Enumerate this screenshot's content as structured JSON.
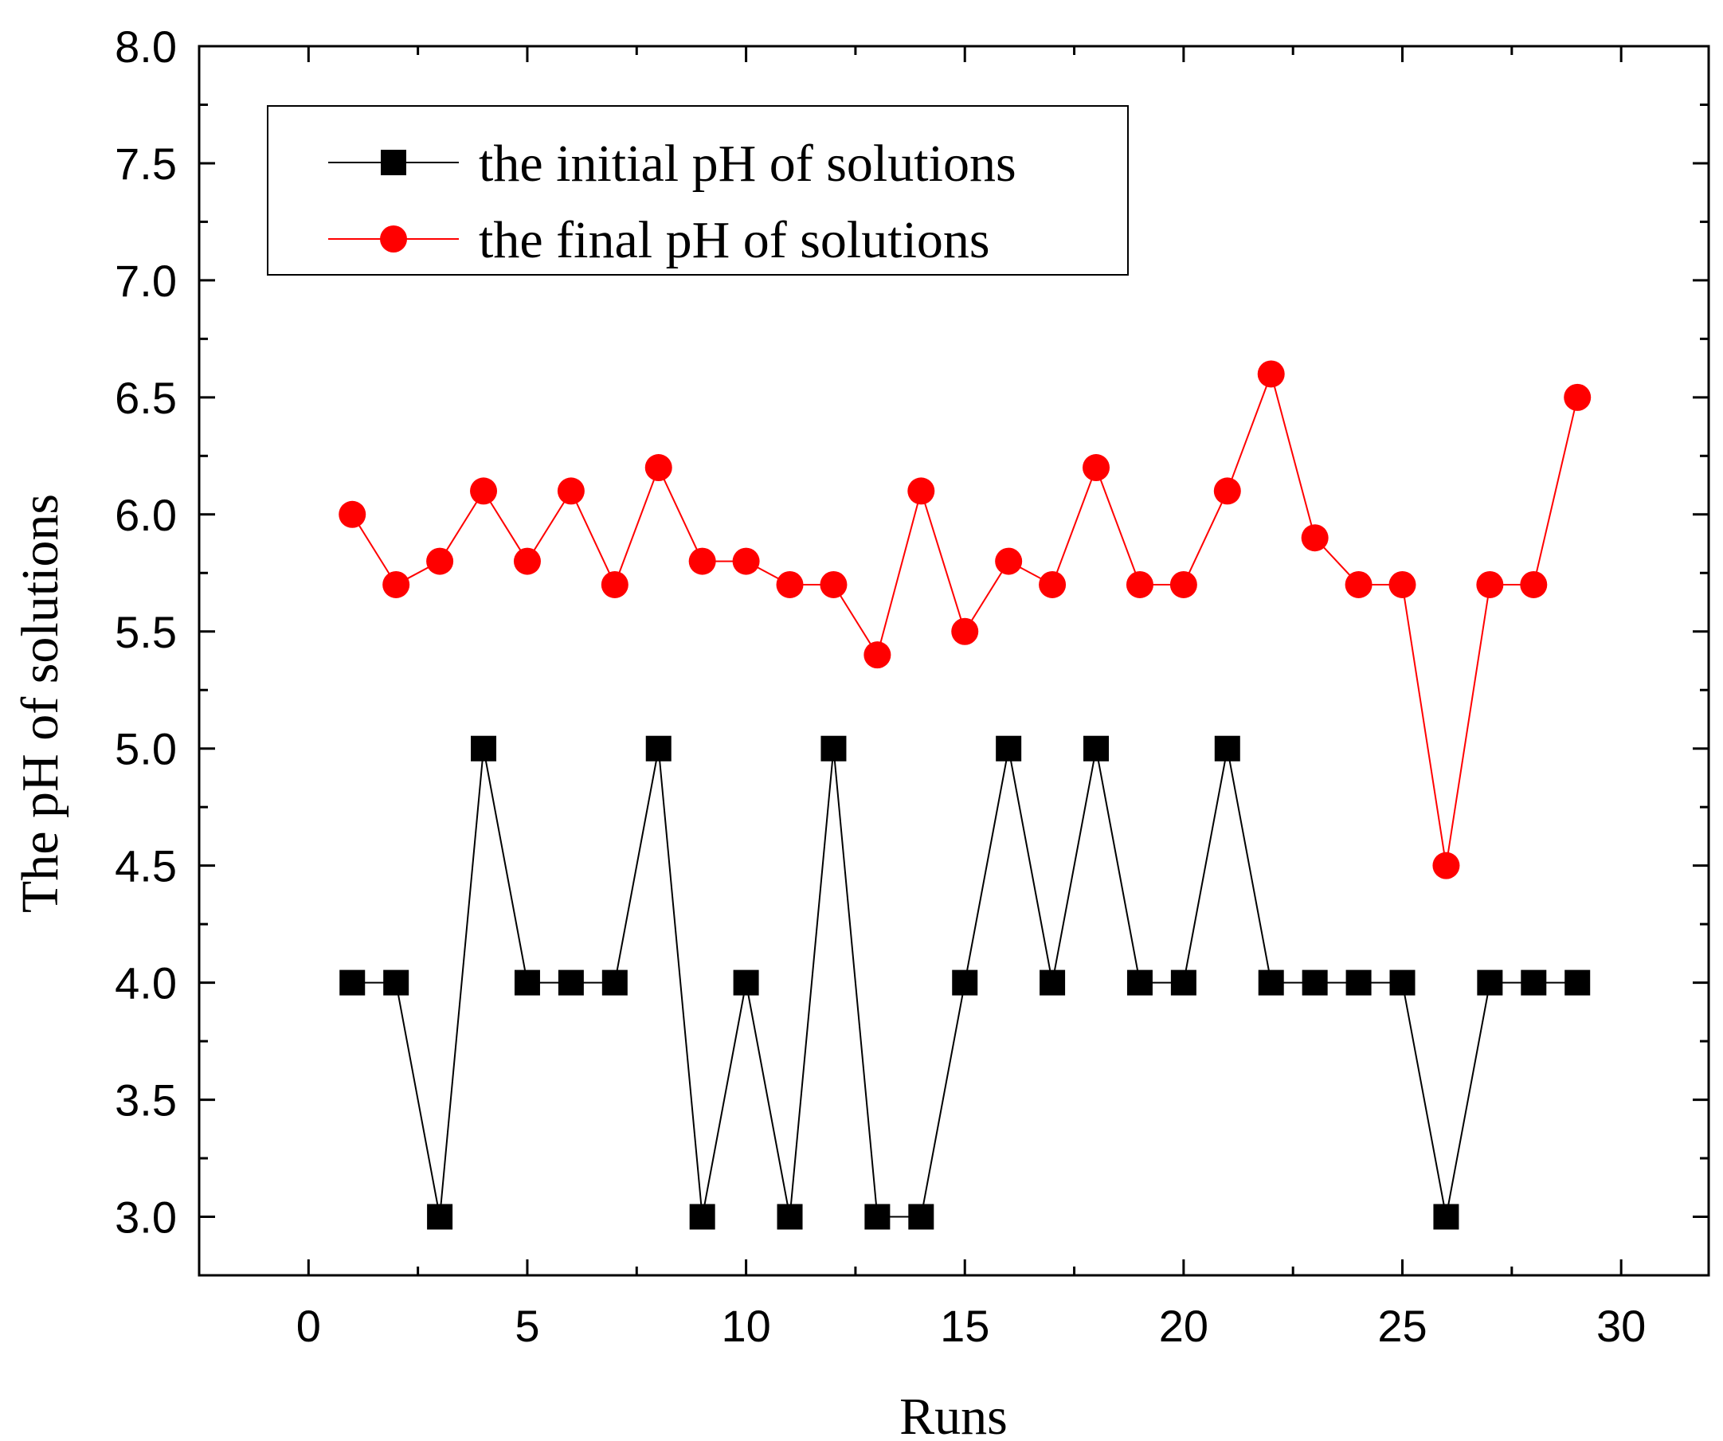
{
  "chart_data": {
    "type": "line",
    "title": "",
    "xlabel": "Runs",
    "ylabel": "The pH of solutions",
    "xlim": [
      -2.5,
      32
    ],
    "ylim": [
      2.75,
      8.0
    ],
    "xticks": [
      0,
      5,
      10,
      15,
      20,
      25,
      30
    ],
    "yticks": [
      3.0,
      3.5,
      4.0,
      4.5,
      5.0,
      5.5,
      6.0,
      6.5,
      7.0,
      7.5,
      8.0
    ],
    "xtick_labels": [
      "0",
      "5",
      "10",
      "15",
      "20",
      "25",
      "30"
    ],
    "ytick_labels": [
      "3.0",
      "3.5",
      "4.0",
      "4.5",
      "5.0",
      "5.5",
      "6.0",
      "6.5",
      "7.0",
      "7.5",
      "8.0"
    ],
    "legend_position": "top-left",
    "x": [
      1,
      2,
      3,
      4,
      5,
      6,
      7,
      8,
      9,
      10,
      11,
      12,
      13,
      14,
      15,
      16,
      17,
      18,
      19,
      20,
      21,
      22,
      23,
      24,
      25,
      26,
      27,
      28,
      29
    ],
    "series": [
      {
        "name": "the initial pH of solutions",
        "color": "#000000",
        "marker": "square",
        "values": [
          4.0,
          4.0,
          3.0,
          5.0,
          4.0,
          4.0,
          4.0,
          5.0,
          3.0,
          4.0,
          3.0,
          5.0,
          3.0,
          3.0,
          4.0,
          5.0,
          4.0,
          5.0,
          4.0,
          4.0,
          5.0,
          4.0,
          4.0,
          4.0,
          4.0,
          3.0,
          4.0,
          4.0,
          4.0
        ]
      },
      {
        "name": "the final pH of solutions",
        "color": "#ff0000",
        "marker": "circle",
        "values": [
          6.0,
          5.7,
          5.8,
          6.1,
          5.8,
          6.1,
          5.7,
          6.2,
          5.8,
          5.8,
          5.7,
          5.7,
          5.4,
          6.1,
          5.5,
          5.8,
          5.7,
          6.2,
          5.7,
          5.7,
          6.1,
          6.6,
          5.9,
          5.7,
          5.7,
          4.5,
          5.7,
          5.7,
          6.5
        ]
      }
    ]
  }
}
